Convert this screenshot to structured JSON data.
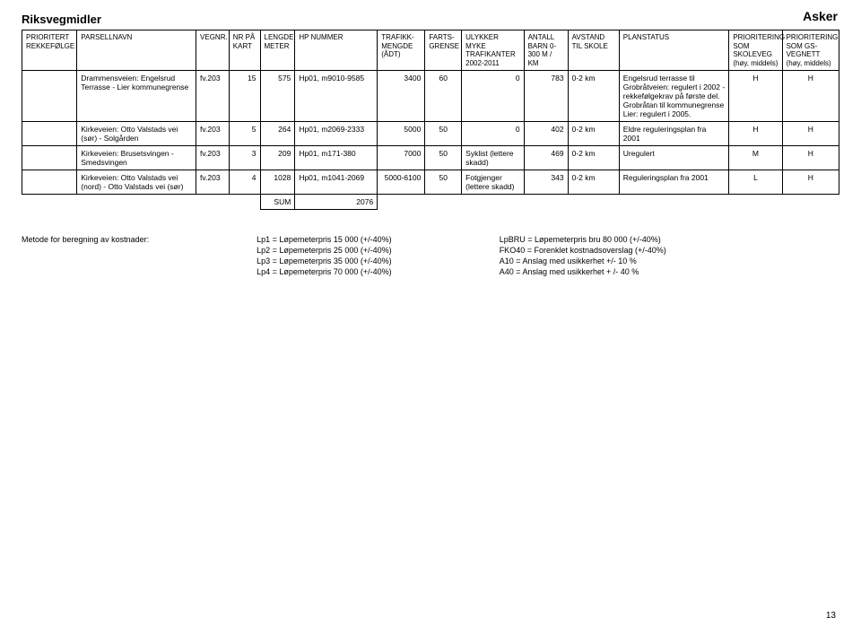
{
  "page": {
    "region": "Asker",
    "title": "Riksvegmidler",
    "page_number": "13"
  },
  "headers": {
    "c1": "PRIORITERT REKKEFØLGE",
    "c2": "PARSELLNAVN",
    "c3": "VEGNR.",
    "c4": "NR PÅ KART",
    "c5": "LENGDE METER",
    "c6": "HP NUMMER",
    "c7": "TRAFIKK-MENGDE (ÅDT)",
    "c8": "FARTS-GRENSE",
    "c9": "ULYKKER MYKE TRAFIKANTER 2002-2011",
    "c10": "ANTALL BARN 0-300 M / KM",
    "c11": "AVSTAND TIL SKOLE",
    "c12": "PLANSTATUS",
    "c13": "PRIORITERING SOM SKOLEVEG (høy, middels)",
    "c14": "PRIORITERING SOM GS-VEGNETT (høy, middels)"
  },
  "rows": [
    {
      "c1": "",
      "c2": "Drammensveien: Engelsrud Terrasse - Lier kommunegrense",
      "c3": "fv.203",
      "c4": "15",
      "c5": "575",
      "c6": "Hp01, m9010-9585",
      "c7": "3400",
      "c8": "60",
      "c9": "0",
      "c10": "783",
      "c11": "0-2 km",
      "c12": "Engelsrud terrasse til Grobråtveien: regulert i 2002 - rekkefølgekrav på første del. Grobråtan til kommunegrense Lier: regulert i 2005.",
      "c13": "H",
      "c14": "H"
    },
    {
      "c1": "",
      "c2": "Kirkeveien: Otto Valstads vei (sør) - Solgården",
      "c3": "fv.203",
      "c4": "5",
      "c5": "264",
      "c6": "Hp01, m2069-2333",
      "c7": "5000",
      "c8": "50",
      "c9": "0",
      "c10": "402",
      "c11": "0-2 km",
      "c12": "Eldre reguleringsplan fra 2001",
      "c13": "H",
      "c14": "H"
    },
    {
      "c1": "",
      "c2": "Kirkeveien: Brusetsvingen - Smedsvingen",
      "c3": "fv.203",
      "c4": "3",
      "c5": "209",
      "c6": "Hp01, m171-380",
      "c7": "7000",
      "c8": "50",
      "c9": "Syklist (lettere skadd)",
      "c10": "469",
      "c11": "0-2 km",
      "c12": "Uregulert",
      "c13": "M",
      "c14": "H"
    },
    {
      "c1": "",
      "c2": "Kirkeveien: Otto Valstads vei (nord) - Otto Valstads vei (sør)",
      "c3": "fv.203",
      "c4": "4",
      "c5": "1028",
      "c6": "Hp01, m1041-2069",
      "c7": "5000-6100",
      "c8": "50",
      "c9": "Fotgjenger (lettere skadd)",
      "c10": "343",
      "c11": "0-2 km",
      "c12": "Reguleringsplan fra 2001",
      "c13": "L",
      "c14": "H"
    }
  ],
  "sum": {
    "label": "SUM",
    "value": "2076"
  },
  "methods": {
    "lead": "Metode for beregning av kostnader:",
    "left": [
      "Lp1 = Løpemeterpris 15 000 (+/-40%)",
      "Lp2 = Løpemeterpris 25 000 (+/-40%)",
      "Lp3 = Løpemeterpris 35 000 (+/-40%)",
      "Lp4 = Løpemeterpris 70 000 (+/-40%)"
    ],
    "right": [
      "LpBRU = Løpemeterpris bru 80 000 (+/-40%)",
      "FKO40 = Forenklet kostnadsoverslag (+/-40%)",
      "A10 = Anslag med usikkerhet +/- 10 %",
      "A40 = Anslag med usikkerhet + /- 40 %"
    ]
  }
}
